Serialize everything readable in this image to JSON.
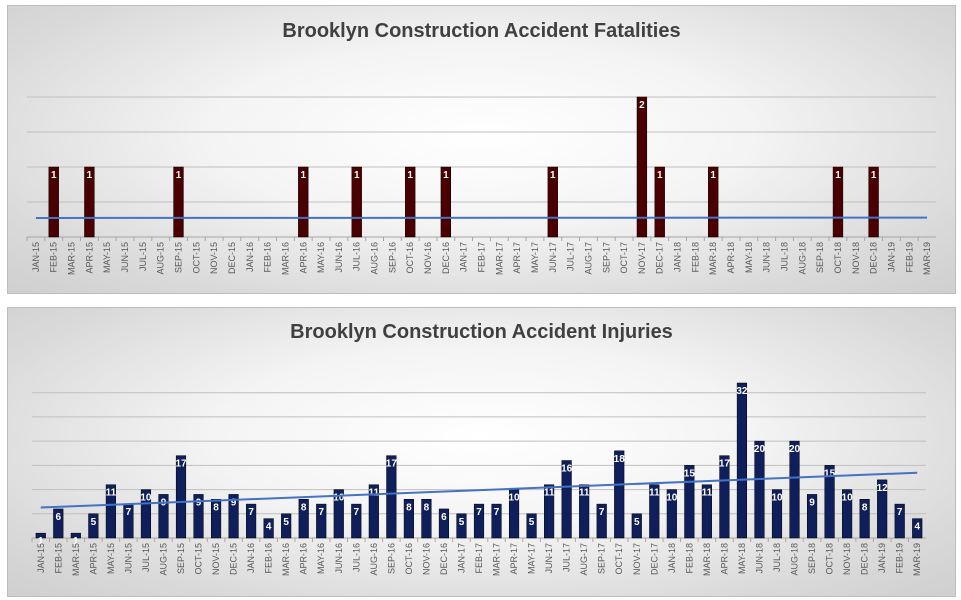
{
  "colors": {
    "fatal_bar": "#4a0000",
    "injury_bar": "#0f1f5c",
    "trend": "#4472c4"
  },
  "chart_data": [
    {
      "type": "bar",
      "title": "Brooklyn Construction Accident Fatalities",
      "categories": [
        "JAN-15",
        "FEB-15",
        "MAR-15",
        "APR-15",
        "MAY-15",
        "JUN-15",
        "JUL-15",
        "AUG-15",
        "SEP-15",
        "OCT-15",
        "NOV-15",
        "DEC-15",
        "JAN-16",
        "FEB-16",
        "MAR-16",
        "APR-16",
        "MAY-16",
        "JUN-16",
        "JUL-16",
        "AUG-16",
        "SEP-16",
        "OCT-16",
        "NOV-16",
        "DEC-16",
        "JAN-17",
        "FEB-17",
        "MAR-17",
        "APR-17",
        "MAY-17",
        "JUN-17",
        "JUL-17",
        "AUG-17",
        "SEP-17",
        "OCT-17",
        "NOV-17",
        "DEC-17",
        "JAN-18",
        "FEB-18",
        "MAR-18",
        "APR-18",
        "MAY-18",
        "JUN-18",
        "JUL-18",
        "AUG-18",
        "SEP-18",
        "OCT-18",
        "NOV-18",
        "DEC-18",
        "JAN-19",
        "FEB-19",
        "MAR-19"
      ],
      "values": [
        0,
        1,
        0,
        1,
        0,
        0,
        0,
        0,
        1,
        0,
        0,
        0,
        0,
        0,
        0,
        1,
        0,
        0,
        1,
        0,
        0,
        1,
        0,
        1,
        0,
        0,
        0,
        0,
        0,
        1,
        0,
        0,
        0,
        0,
        2,
        1,
        0,
        0,
        1,
        0,
        0,
        0,
        0,
        0,
        0,
        1,
        0,
        1,
        0,
        0,
        0
      ],
      "ylim": [
        0,
        2
      ],
      "grid": true,
      "trendline": true
    },
    {
      "type": "bar",
      "title": "Brooklyn Construction Accident Injuries",
      "categories": [
        "JAN-15",
        "FEB-15",
        "MAR-15",
        "APR-15",
        "MAY-15",
        "JUN-15",
        "JUL-15",
        "AUG-15",
        "SEP-15",
        "OCT-15",
        "NOV-15",
        "DEC-15",
        "JAN-16",
        "FEB-16",
        "MAR-16",
        "APR-16",
        "MAY-16",
        "JUN-16",
        "JUL-16",
        "AUG-16",
        "SEP-16",
        "OCT-16",
        "NOV-16",
        "DEC-16",
        "JAN-17",
        "FEB-17",
        "MAR-17",
        "APR-17",
        "MAY-17",
        "JUN-17",
        "JUL-17",
        "AUG-17",
        "SEP-17",
        "OCT-17",
        "NOV-17",
        "DEC-17",
        "JAN-18",
        "FEB-18",
        "MAR-18",
        "APR-18",
        "MAY-18",
        "JUN-18",
        "JUL-18",
        "AUG-18",
        "SEP-18",
        "OCT-18",
        "NOV-18",
        "DEC-18",
        "JAN-19",
        "FEB-19",
        "MAR-19"
      ],
      "values": [
        1,
        6,
        1,
        5,
        11,
        7,
        10,
        9,
        17,
        9,
        8,
        9,
        7,
        4,
        5,
        8,
        7,
        10,
        7,
        11,
        17,
        8,
        8,
        6,
        5,
        7,
        7,
        10,
        5,
        11,
        16,
        11,
        7,
        18,
        5,
        11,
        10,
        15,
        11,
        17,
        32,
        20,
        10,
        20,
        9,
        15,
        10,
        8,
        12,
        7,
        4
      ],
      "ylim": [
        0,
        32
      ],
      "grid": true,
      "trendline": true
    }
  ]
}
